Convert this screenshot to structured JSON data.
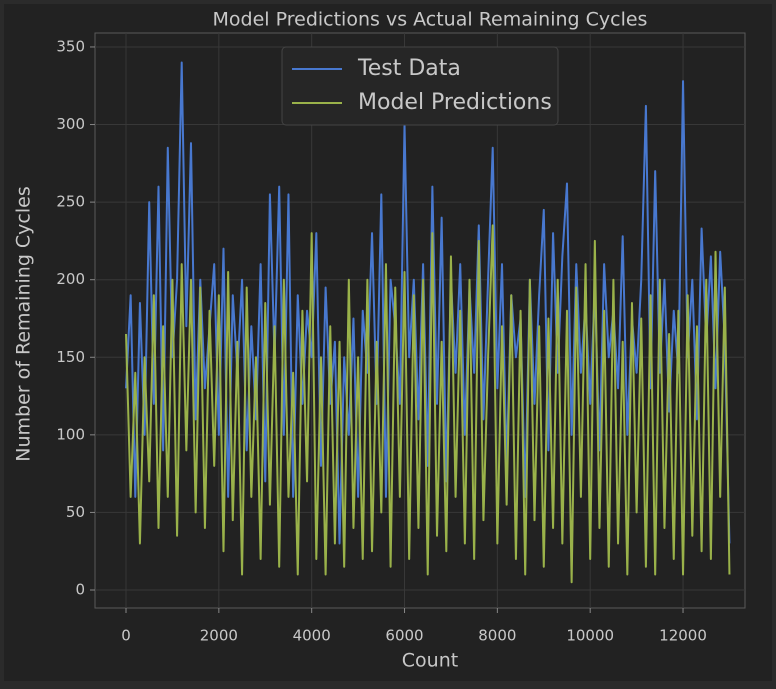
{
  "chart_data": {
    "type": "line",
    "title": "Model Predictions vs Actual Remaining Cycles",
    "xlabel": "Count",
    "ylabel": "Number of Remaining Cycles",
    "x": [
      0,
      100,
      200,
      300,
      400,
      500,
      600,
      700,
      800,
      900,
      1000,
      1100,
      1200,
      1300,
      1400,
      1500,
      1600,
      1700,
      1800,
      1900,
      2000,
      2100,
      2200,
      2300,
      2400,
      2500,
      2600,
      2700,
      2800,
      2900,
      3000,
      3100,
      3200,
      3300,
      3400,
      3500,
      3600,
      3700,
      3800,
      3900,
      4000,
      4100,
      4200,
      4300,
      4400,
      4500,
      4600,
      4700,
      4800,
      4900,
      5000,
      5100,
      5200,
      5300,
      5400,
      5500,
      5600,
      5700,
      5800,
      5900,
      6000,
      6100,
      6200,
      6300,
      6400,
      6500,
      6600,
      6700,
      6800,
      6900,
      7000,
      7100,
      7200,
      7300,
      7400,
      7500,
      7600,
      7700,
      7800,
      7900,
      8000,
      8100,
      8200,
      8300,
      8400,
      8500,
      8600,
      8700,
      8800,
      8900,
      9000,
      9100,
      9200,
      9300,
      9400,
      9500,
      9600,
      9700,
      9800,
      9900,
      10000,
      10100,
      10200,
      10300,
      10400,
      10500,
      10600,
      10700,
      10800,
      10900,
      11000,
      11100,
      11200,
      11300,
      11400,
      11500,
      11600,
      11700,
      11800,
      11900,
      12000,
      12100,
      12200,
      12300,
      12400,
      12500,
      12600,
      12700,
      12800,
      12900,
      13000
    ],
    "series": [
      {
        "name": "Test Data",
        "color": "#4878cf",
        "values": [
          130,
          190,
          60,
          185,
          100,
          250,
          120,
          260,
          90,
          285,
          150,
          200,
          340,
          170,
          288,
          110,
          200,
          130,
          170,
          210,
          100,
          220,
          60,
          190,
          140,
          200,
          90,
          170,
          110,
          210,
          70,
          255,
          150,
          260,
          100,
          255,
          60,
          190,
          120,
          180,
          150,
          230,
          80,
          195,
          120,
          160,
          30,
          150,
          100,
          175,
          60,
          180,
          140,
          230,
          120,
          255,
          60,
          200,
          170,
          120,
          300,
          150,
          200,
          110,
          210,
          80,
          260,
          120,
          240,
          70,
          200,
          140,
          210,
          100,
          195,
          140,
          235,
          110,
          200,
          285,
          130,
          210,
          80,
          190,
          150,
          175,
          60,
          200,
          120,
          190,
          245,
          90,
          230,
          140,
          215,
          262,
          100,
          210,
          140,
          185,
          120,
          195,
          90,
          210,
          150,
          180,
          130,
          228,
          100,
          175,
          140,
          200,
          312,
          130,
          270,
          140,
          200,
          115,
          180,
          140,
          328,
          150,
          200,
          110,
          233,
          160,
          215,
          130,
          218,
          160,
          30
        ]
      },
      {
        "name": "Model Predictions",
        "color": "#9ab24a",
        "values": [
          165,
          60,
          140,
          30,
          150,
          70,
          190,
          40,
          170,
          60,
          200,
          35,
          210,
          90,
          200,
          50,
          195,
          40,
          180,
          80,
          190,
          25,
          205,
          45,
          160,
          10,
          195,
          60,
          150,
          20,
          185,
          55,
          170,
          15,
          200,
          60,
          140,
          10,
          180,
          70,
          230,
          20,
          150,
          10,
          170,
          30,
          160,
          15,
          200,
          40,
          150,
          20,
          200,
          25,
          160,
          50,
          210,
          15,
          195,
          60,
          205,
          20,
          190,
          40,
          200,
          10,
          230,
          35,
          160,
          25,
          215,
          60,
          180,
          30,
          200,
          20,
          225,
          45,
          150,
          235,
          30,
          170,
          55,
          190,
          20,
          180,
          10,
          200,
          45,
          170,
          15,
          175,
          40,
          200,
          30,
          180,
          5,
          195,
          60,
          210,
          20,
          225,
          40,
          180,
          15,
          200,
          30,
          160,
          10,
          185,
          50,
          175,
          15,
          190,
          10,
          200,
          40,
          165,
          20,
          180,
          10,
          190,
          35,
          170,
          25,
          200,
          20,
          218,
          60,
          195,
          10
        ]
      }
    ],
    "xlim": [
      -668,
      13335
    ],
    "ylim": [
      -11.6,
      359
    ],
    "xticks": [
      0,
      2000,
      4000,
      6000,
      8000,
      10000,
      12000
    ],
    "yticks": [
      0,
      50,
      100,
      150,
      200,
      250,
      300,
      350
    ],
    "grid": true,
    "legend": "upper center"
  }
}
